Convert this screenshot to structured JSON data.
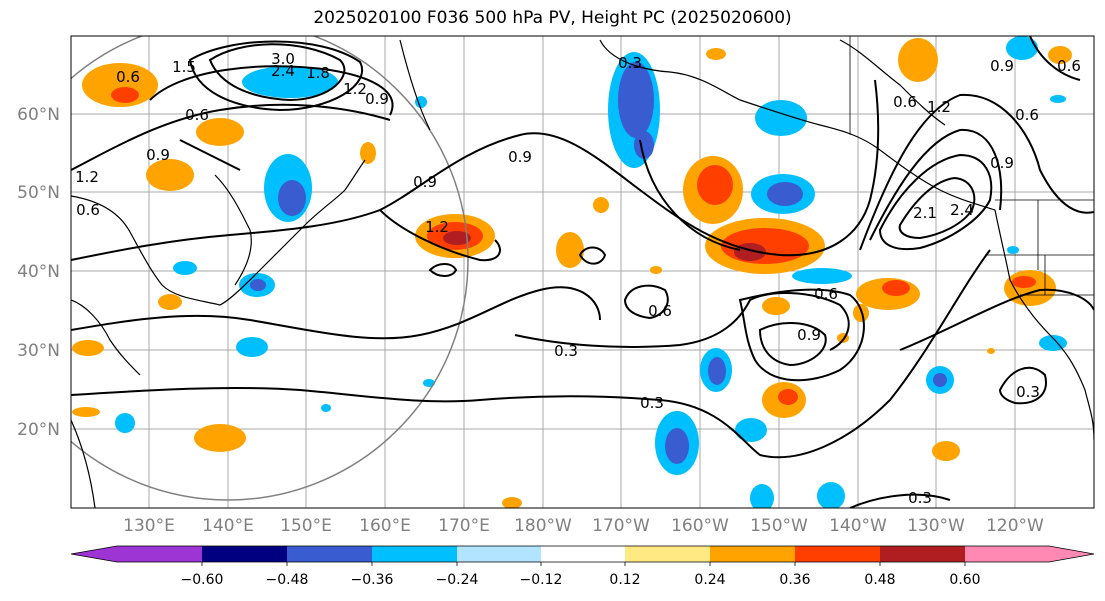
{
  "title": "2025020100 F036 500 hPa PV, Height PC (2025020600)",
  "map": {
    "lat_labels": [
      "60°N",
      "50°N",
      "40°N",
      "30°N",
      "20°N"
    ],
    "lon_labels": [
      "130°E",
      "140°E",
      "150°E",
      "160°E",
      "170°E",
      "180°W",
      "170°W",
      "160°W",
      "150°W",
      "140°W",
      "130°W",
      "120°W"
    ],
    "contour_labels": [
      "0.6",
      "3.0",
      "2.4",
      "1.8",
      "1.5",
      "1.2",
      "0.9",
      "0.6",
      "0.3",
      "0.9",
      "0.9",
      "1.2",
      "0.6",
      "0.9",
      "1.2",
      "0.6",
      "0.9",
      "0.6",
      "1.2",
      "0.6",
      "0.9",
      "2.1",
      "2.4",
      "0.6",
      "0.9",
      "0.6",
      "0.3",
      "0.3",
      "0.3",
      "0.3"
    ],
    "label_color": "#808080",
    "positive_colors": [
      "#ffe983",
      "#ffa300",
      "#ff3f00",
      "#b01e21",
      "#ff89b2"
    ],
    "negative_colors": [
      "#b3e4ff",
      "#00bfff",
      "#3a5cd1",
      "#000080",
      "#9d34d4"
    ]
  },
  "colorbar": {
    "tick_labels": [
      "−0.60",
      "−0.48",
      "−0.36",
      "−0.24",
      "−0.12",
      "0.12",
      "0.24",
      "0.36",
      "0.48",
      "0.60"
    ],
    "colors": [
      "#9d34d4",
      "#000080",
      "#3a5cd1",
      "#00bfff",
      "#b3e4ff",
      "#ffffff",
      "#ffe983",
      "#ffa300",
      "#ff3f00",
      "#b01e21",
      "#ff89b2"
    ]
  }
}
